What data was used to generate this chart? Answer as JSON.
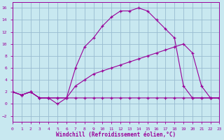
{
  "xlabel": "Windchill (Refroidissement éolien,°C)",
  "bg_color": "#c8e8f0",
  "grid_color": "#99bbd0",
  "line_color": "#990099",
  "xlim": [
    0,
    23
  ],
  "ylim": [
    -3,
    17
  ],
  "xticks": [
    0,
    1,
    2,
    3,
    4,
    5,
    6,
    7,
    8,
    9,
    10,
    11,
    12,
    13,
    14,
    15,
    16,
    17,
    18,
    19,
    20,
    21,
    22,
    23
  ],
  "yticks": [
    -2,
    0,
    2,
    4,
    6,
    8,
    10,
    12,
    14,
    16
  ],
  "line1_x": [
    0,
    1,
    2,
    3,
    4,
    5,
    6,
    7,
    8,
    9,
    10,
    11,
    12,
    13,
    14,
    15,
    16,
    17,
    18,
    19,
    20,
    21,
    22,
    23
  ],
  "line1_y": [
    2,
    1.5,
    2,
    1,
    1,
    1,
    1,
    1,
    1,
    1,
    1,
    1,
    1,
    1,
    1,
    1,
    1,
    1,
    1,
    1,
    1,
    1,
    1,
    1
  ],
  "line2_x": [
    0,
    1,
    2,
    3,
    4,
    5,
    6,
    7,
    8,
    9,
    10,
    11,
    12,
    13,
    14,
    15,
    16,
    17,
    18,
    19,
    20,
    21,
    22,
    23
  ],
  "line2_y": [
    2,
    1.5,
    2,
    1,
    1,
    1,
    1,
    6,
    9.5,
    11,
    13,
    14.5,
    15.5,
    15.5,
    16,
    15.5,
    14,
    12.5,
    11,
    3,
    1,
    1,
    1,
    1
  ],
  "line3_x": [
    0,
    1,
    2,
    3,
    4,
    5,
    6,
    7,
    8,
    9,
    10,
    11,
    12,
    13,
    14,
    15,
    16,
    17,
    18,
    19,
    20,
    21,
    22,
    23
  ],
  "line3_y": [
    2,
    1.5,
    2,
    1,
    1,
    0,
    1,
    3,
    4,
    5,
    5.5,
    6,
    6.5,
    7,
    7.5,
    8,
    8.5,
    9,
    9.5,
    10,
    8.5,
    3,
    1,
    1
  ]
}
